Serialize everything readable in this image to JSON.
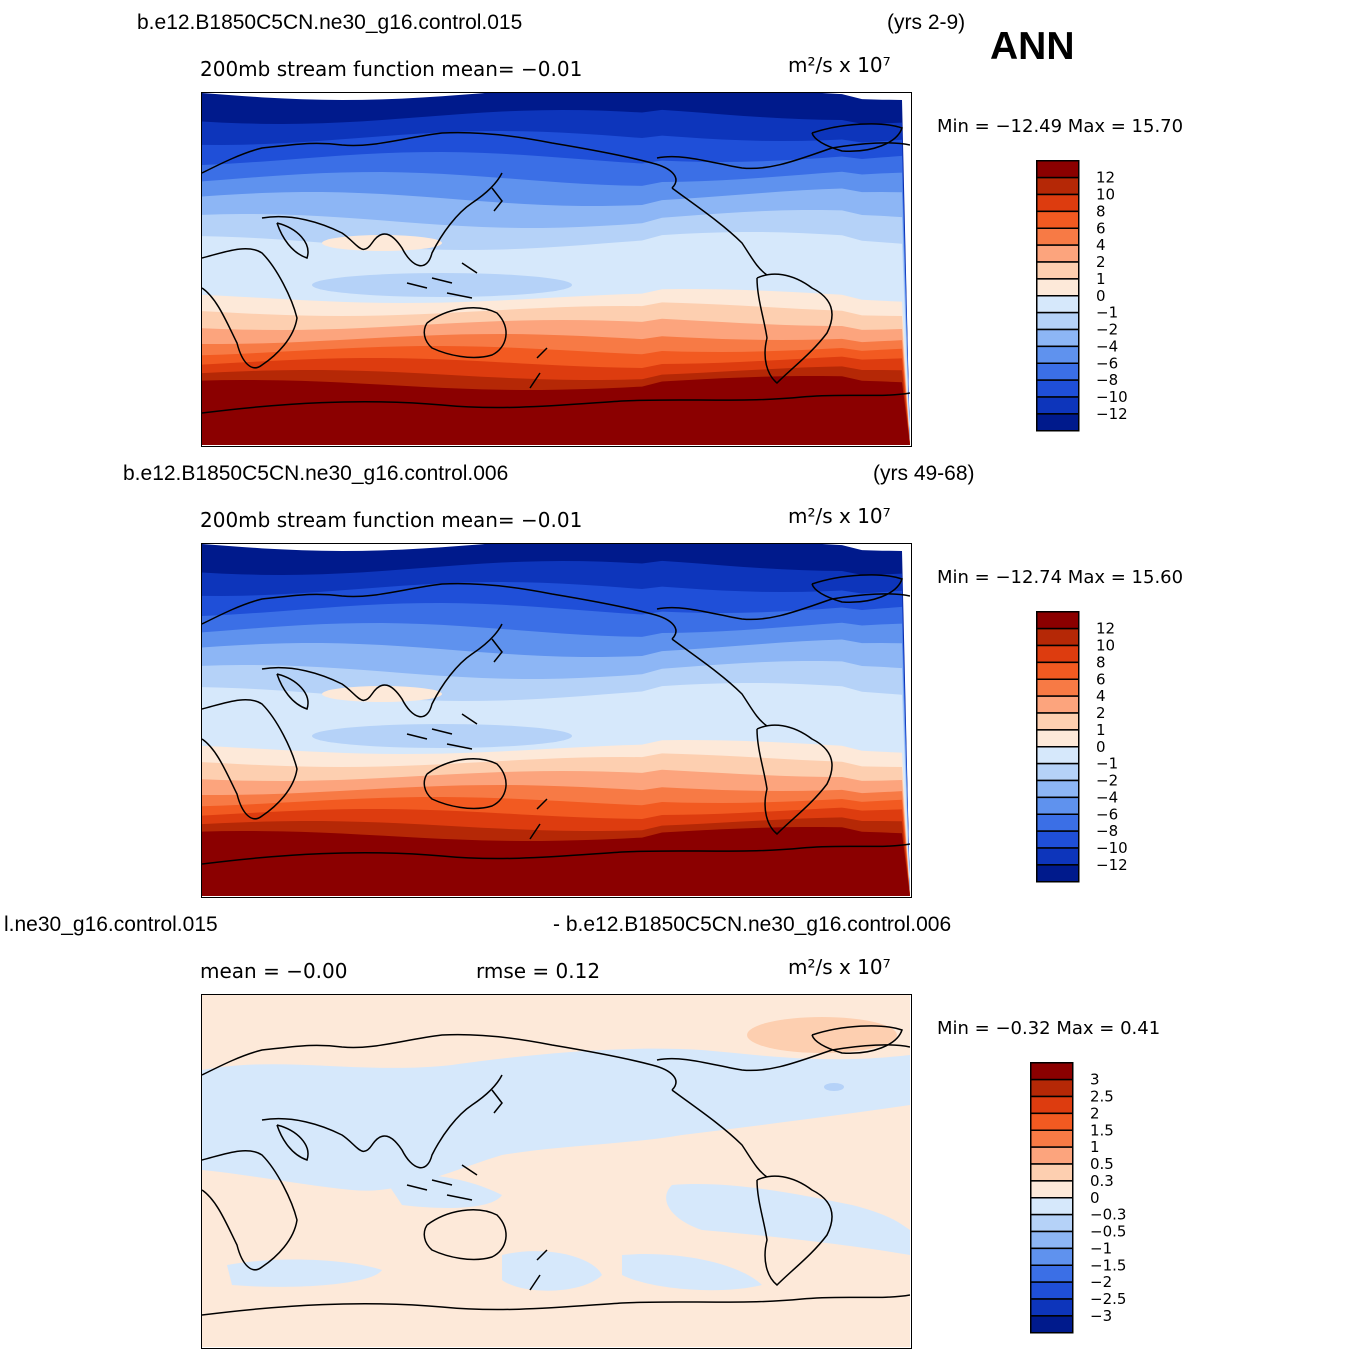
{
  "season": "ANN",
  "panels": [
    {
      "case_label": "b.e12.B1850C5CN.ne30_g16.control.015",
      "years": "(yrs 2-9)",
      "subtitle_left": "200mb  stream  function    mean=   −0.01",
      "subtitle_right": "",
      "units": "m²/s  x  10⁷",
      "minmax": "Min  =  −12.49  Max  =    15.70",
      "colorbar_labels": [
        "12",
        "10",
        "8",
        "6",
        "4",
        "2",
        "1",
        "0",
        "−1",
        "−2",
        "−4",
        "−6",
        "−8",
        "−10",
        "−12"
      ],
      "kind": "field"
    },
    {
      "case_label": "b.e12.B1850C5CN.ne30_g16.control.006",
      "years": "(yrs 49-68)",
      "subtitle_left": "200mb  stream  function    mean=   −0.01",
      "subtitle_right": "",
      "units": "m²/s  x  10⁷",
      "minmax": "Min  =  −12.74  Max  =    15.60",
      "colorbar_labels": [
        "12",
        "10",
        "8",
        "6",
        "4",
        "2",
        "1",
        "0",
        "−1",
        "−2",
        "−4",
        "−6",
        "−8",
        "−10",
        "−12"
      ],
      "kind": "field"
    },
    {
      "case_label": "l.ne30_g16.control.015",
      "years": "- b.e12.B1850C5CN.ne30_g16.control.006",
      "subtitle_left": "mean  =    −0.00",
      "subtitle_right": "rmse  =     0.12",
      "units": "m²/s  x  10⁷",
      "minmax": "Min  =    −0.32  Max  =     0.41",
      "colorbar_labels": [
        "3",
        "2.5",
        "2",
        "1.5",
        "1",
        "0.5",
        "0.3",
        "0",
        "−0.3",
        "−0.5",
        "−1",
        "−1.5",
        "−2",
        "−2.5",
        "−3"
      ],
      "kind": "diff"
    }
  ],
  "colorbar_colors": [
    "#8b0000",
    "#b52806",
    "#dd3c0f",
    "#f25a21",
    "#f77a45",
    "#fca47d",
    "#fdcfb0",
    "#fde9d9",
    "#d6e8fb",
    "#b5d2f8",
    "#8db6f5",
    "#5f92ee",
    "#3b6fe6",
    "#1f4fd8",
    "#0d35bb",
    "#001a8c"
  ]
}
